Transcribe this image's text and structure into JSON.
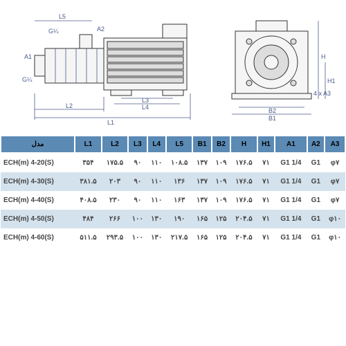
{
  "diagram": {
    "labels": {
      "L1": "L1",
      "L2": "L2",
      "L3": "L3",
      "L4": "L4",
      "L5": "L5",
      "H": "H",
      "H1": "H1",
      "B1": "B1",
      "B2": "B2",
      "A1": "A1",
      "A2": "A2",
      "A3": "4 x A3",
      "G1": "G¼",
      "G2": "G¼"
    },
    "colors": {
      "dim": "#4a5a8a",
      "part": "#333"
    }
  },
  "table": {
    "header_bg": "#5b8ab5",
    "row_alt_bg": "#d4e2ed",
    "columns": [
      "مدل",
      "L1",
      "L2",
      "L3",
      "L4",
      "L5",
      "B1",
      "B2",
      "H",
      "H1",
      "A1",
      "A2",
      "A3"
    ],
    "rows": [
      [
        "ECH(m) 4-20(S)",
        "۳۵۴",
        "۱۷۵.۵",
        "۹۰",
        "۱۱۰",
        "۱۰۸.۵",
        "۱۳۷",
        "۱۰۹",
        "۱۷۶.۵",
        "۷۱",
        "G1 1/4",
        "G1",
        "φ۷"
      ],
      [
        "ECH(m) 4-30(S)",
        "۳۸۱.۵",
        "۲۰۳",
        "۹۰",
        "۱۱۰",
        "۱۳۶",
        "۱۳۷",
        "۱۰۹",
        "۱۷۶.۵",
        "۷۱",
        "G1 1/4",
        "G1",
        "φ۷"
      ],
      [
        "ECH(m) 4-40(S)",
        "۴۰۸.۵",
        "۲۳۰",
        "۹۰",
        "۱۱۰",
        "۱۶۳",
        "۱۳۷",
        "۱۰۹",
        "۱۷۶.۵",
        "۷۱",
        "G1 1/4",
        "G1",
        "φ۷"
      ],
      [
        "ECH(m) 4-50(S)",
        "۴۸۴",
        "۲۶۶",
        "۱۰۰",
        "۱۳۰",
        "۱۹۰",
        "۱۶۵",
        "۱۲۵",
        "۲۰۴.۵",
        "۷۱",
        "G1 1/4",
        "G1",
        "φ۱۰"
      ],
      [
        "ECH(m) 4-60(S)",
        "۵۱۱.۵",
        "۲۹۳.۵",
        "۱۰۰",
        "۱۳۰",
        "۲۱۷.۵",
        "۱۶۵",
        "۱۲۵",
        "۲۰۴.۵",
        "۷۱",
        "G1 1/4",
        "G1",
        "φ۱۰"
      ]
    ]
  }
}
